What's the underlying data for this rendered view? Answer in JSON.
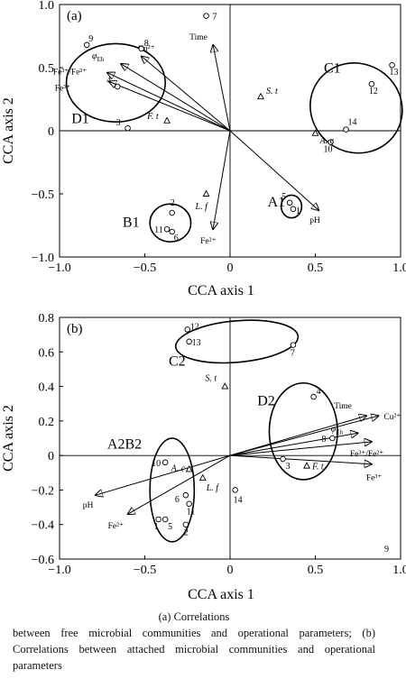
{
  "caption": {
    "line1": "(a) Correlations",
    "line2": "between free microbial communities and operational parameters; (b) Correlations between attached microbial communities and operational parameters"
  },
  "chart_data": [
    {
      "type": "scatter",
      "panel_label": "(a)",
      "xlabel": "CCA axis 1",
      "ylabel": "CCA axis 2",
      "xlim": [
        -1.0,
        1.0
      ],
      "ylim": [
        -1.0,
        1.0
      ],
      "xticks": [
        -1.0,
        -0.5,
        0,
        0.5,
        1.0
      ],
      "xtick_labels": [
        "−1.0",
        "−0.5",
        "0",
        "0.5",
        "1.0"
      ],
      "yticks": [
        -1.0,
        -0.5,
        0,
        0.5,
        1.0
      ],
      "ytick_labels": [
        "−1.0",
        "−0.5",
        "0",
        "0.5",
        "1.0"
      ],
      "samples": [
        {
          "label": "1",
          "x": 0.37,
          "y": -0.62
        },
        {
          "label": "2",
          "x": -0.34,
          "y": -0.65
        },
        {
          "label": "3",
          "x": -0.6,
          "y": 0.02
        },
        {
          "label": "4",
          "x": -0.66,
          "y": 0.35
        },
        {
          "label": "5",
          "x": 0.35,
          "y": -0.57
        },
        {
          "label": "6",
          "x": -0.34,
          "y": -0.8
        },
        {
          "label": "7",
          "x": -0.14,
          "y": 0.91
        },
        {
          "label": "8",
          "x": -0.52,
          "y": 0.65
        },
        {
          "label": "9",
          "x": -0.84,
          "y": 0.68
        },
        {
          "label": "10",
          "x": 0.59,
          "y": -0.09
        },
        {
          "label": "11",
          "x": -0.37,
          "y": -0.78
        },
        {
          "label": "12",
          "x": 0.83,
          "y": 0.37
        },
        {
          "label": "13",
          "x": 0.95,
          "y": 0.52
        },
        {
          "label": "14",
          "x": 0.68,
          "y": 0.01
        }
      ],
      "species": [
        {
          "label": "F. t",
          "x": -0.37,
          "y": 0.08
        },
        {
          "label": "S. t",
          "x": 0.18,
          "y": 0.27
        },
        {
          "label": "A. c",
          "x": 0.5,
          "y": -0.02
        },
        {
          "label": "L. f",
          "x": -0.14,
          "y": -0.5
        }
      ],
      "vectors": [
        {
          "label": "Time",
          "x": -0.1,
          "y": 0.68
        },
        {
          "label": "Cu²⁺",
          "x": -0.52,
          "y": 0.59
        },
        {
          "label": "φEh",
          "x": -0.64,
          "y": 0.53
        },
        {
          "label": "Fe³⁺/Fe²⁺",
          "x": -0.72,
          "y": 0.46
        },
        {
          "label": "Fe³⁺",
          "x": -0.71,
          "y": 0.39
        },
        {
          "label": "pH",
          "x": 0.52,
          "y": -0.63
        },
        {
          "label": "Fe²⁺",
          "x": -0.1,
          "y": -0.78
        }
      ],
      "groups": [
        {
          "label": "D1",
          "cx": -0.67,
          "cy": 0.38,
          "rx": 0.29,
          "ry": 0.31
        },
        {
          "label": "C1",
          "cx": 0.74,
          "cy": 0.18,
          "rx": 0.26,
          "ry": 0.37,
          "rotation_deg": -57
        },
        {
          "label": "B1",
          "cx": -0.35,
          "cy": -0.73,
          "rx": 0.12,
          "ry": 0.15
        },
        {
          "label": "A1",
          "cx": 0.36,
          "cy": -0.6,
          "rx": 0.06,
          "ry": 0.09
        }
      ]
    },
    {
      "type": "scatter",
      "panel_label": "(b)",
      "xlabel": "CCA axis 1",
      "ylabel": "CCA axis 2",
      "xlim": [
        -1.0,
        1.0
      ],
      "ylim": [
        -0.6,
        0.8
      ],
      "xticks": [
        -1.0,
        -0.5,
        0,
        0.5,
        1.0
      ],
      "xtick_labels": [
        "−1.0",
        "−0.5",
        "0",
        "0.5",
        "1.0"
      ],
      "yticks": [
        -0.6,
        -0.4,
        -0.2,
        0,
        0.2,
        0.4,
        0.6,
        0.8
      ],
      "ytick_labels": [
        "−0.6",
        "−0.4",
        "−0.2",
        "0",
        "0.2",
        "0.4",
        "0.6",
        "0.8"
      ],
      "samples": [
        {
          "label": "1",
          "x": -0.42,
          "y": -0.37
        },
        {
          "label": "2",
          "x": -0.26,
          "y": -0.4
        },
        {
          "label": "3",
          "x": 0.31,
          "y": -0.02
        },
        {
          "label": "4",
          "x": 0.49,
          "y": 0.34
        },
        {
          "label": "5",
          "x": -0.38,
          "y": -0.37
        },
        {
          "label": "6",
          "x": -0.26,
          "y": -0.23
        },
        {
          "label": "7",
          "x": 0.37,
          "y": 0.64
        },
        {
          "label": "8",
          "x": 0.6,
          "y": 0.1
        },
        {
          "label": "10",
          "x": -0.38,
          "y": -0.04
        },
        {
          "label": "11",
          "x": -0.24,
          "y": -0.28
        },
        {
          "label": "12",
          "x": -0.25,
          "y": 0.73
        },
        {
          "label": "13",
          "x": -0.24,
          "y": 0.66
        },
        {
          "label": "14",
          "x": 0.03,
          "y": -0.2
        }
      ],
      "corner_label": "9",
      "species": [
        {
          "label": "S. t",
          "x": -0.03,
          "y": 0.4
        },
        {
          "label": "A. c",
          "x": -0.24,
          "y": -0.08
        },
        {
          "label": "L. f",
          "x": -0.16,
          "y": -0.13
        },
        {
          "label": "F. t",
          "x": 0.45,
          "y": -0.06
        }
      ],
      "vectors": [
        {
          "label": "Time",
          "x": 0.8,
          "y": 0.23
        },
        {
          "label": "Cu²⁺",
          "x": 0.87,
          "y": 0.23
        },
        {
          "label": "φEh",
          "x": 0.75,
          "y": 0.13
        },
        {
          "label": "Fe³⁺/Fe²⁺",
          "x": 0.83,
          "y": 0.08
        },
        {
          "label": "Fe³⁺",
          "x": 0.83,
          "y": -0.05
        },
        {
          "label": "pH",
          "x": -0.79,
          "y": -0.23
        },
        {
          "label": "Fe²⁺",
          "x": -0.6,
          "y": -0.34
        }
      ],
      "groups": [
        {
          "label": "C2",
          "cx": 0.04,
          "cy": 0.66,
          "rx": 0.36,
          "ry": 0.12,
          "rotation_deg": -5
        },
        {
          "label": "D2",
          "cx": 0.43,
          "cy": 0.14,
          "rx": 0.2,
          "ry": 0.28
        },
        {
          "label": "A2B2",
          "cx": -0.34,
          "cy": -0.2,
          "rx": 0.13,
          "ry": 0.3
        }
      ]
    }
  ]
}
